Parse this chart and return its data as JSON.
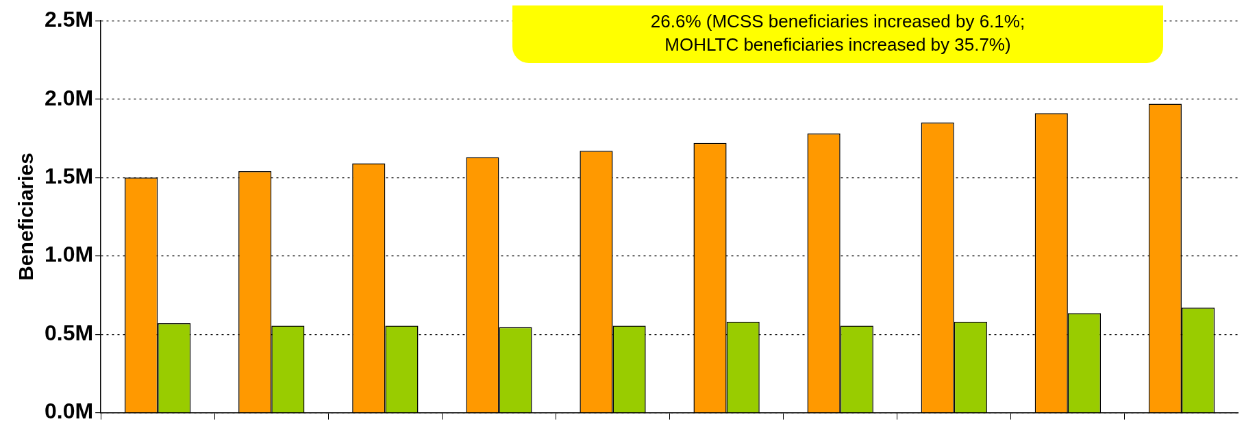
{
  "chart_data": {
    "type": "bar",
    "ylabel": "Beneficiaries",
    "categories": [
      null,
      null,
      null,
      null,
      null,
      null,
      null,
      null,
      null,
      null
    ],
    "series": [
      {
        "color": "#ff9900",
        "values": [
          1500000,
          1540000,
          1590000,
          1630000,
          1670000,
          1720000,
          1780000,
          1850000,
          1910000,
          1970000
        ]
      },
      {
        "color": "#99cc00",
        "values": [
          570000,
          555000,
          555000,
          545000,
          555000,
          580000,
          555000,
          580000,
          635000,
          670000
        ]
      }
    ],
    "ylim": [
      0,
      2500000
    ],
    "yticks": [
      {
        "value": 0,
        "label": "0.0M"
      },
      {
        "value": 500000,
        "label": "0.5M"
      },
      {
        "value": 1000000,
        "label": "1.0M"
      },
      {
        "value": 1500000,
        "label": "1.5M"
      },
      {
        "value": 2000000,
        "label": "2.0M"
      },
      {
        "value": 2500000,
        "label": "2.5M"
      }
    ],
    "grid": "y",
    "legend": false,
    "annotations": [
      "26.6% (MCSS beneficiaries increased by 6.1%;\nMOHLTC beneficiaries increased by 35.7%)"
    ]
  }
}
